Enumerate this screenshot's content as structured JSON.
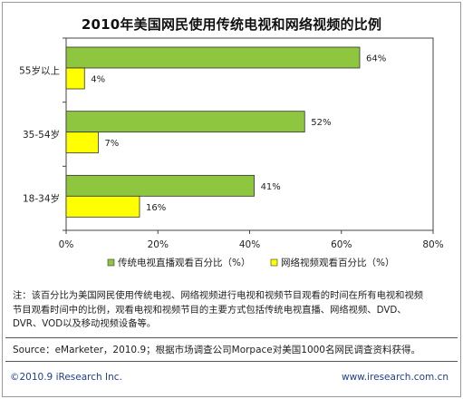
{
  "chart_data": {
    "type": "bar",
    "orientation": "horizontal",
    "title": "2010年美国网民使用传统电视和网络视频的比例",
    "categories": [
      "55岁以上",
      "35-54岁",
      "18-34岁"
    ],
    "series": [
      {
        "name": "传统电视直播观看百分比（%）",
        "color": "#8fc63f",
        "values": [
          64,
          52,
          41
        ],
        "labels": [
          "64%",
          "52%",
          "41%"
        ]
      },
      {
        "name": "网络视频观看百分比（%）",
        "color": "#ffff00",
        "values": [
          4,
          7,
          16
        ],
        "labels": [
          "4%",
          "7%",
          "16%"
        ]
      }
    ],
    "xlim": [
      0,
      80
    ],
    "xticks": [
      "0%",
      "20%",
      "40%",
      "60%",
      "80%"
    ],
    "grid": false,
    "legend_position": "bottom"
  },
  "note": {
    "line1": "注：该百分比为美国网民使用传统电视、网络视频进行电视和视频节目观看的时间在所有电视和视频",
    "line2": "节目观看时间中的比例，观看电视和视频节目的主要方式包括传统电视直播、网络视频、DVD、",
    "line3": "DVR、VOD以及移动视频设备等。"
  },
  "source": "Source：eMarketer，2010.9；根据市场调查公司Morpace对美国1000名网民调查资料获得。",
  "footer": {
    "copyright": "©2010.9 iResearch Inc.",
    "website": "www.iresearch.com.cn"
  }
}
